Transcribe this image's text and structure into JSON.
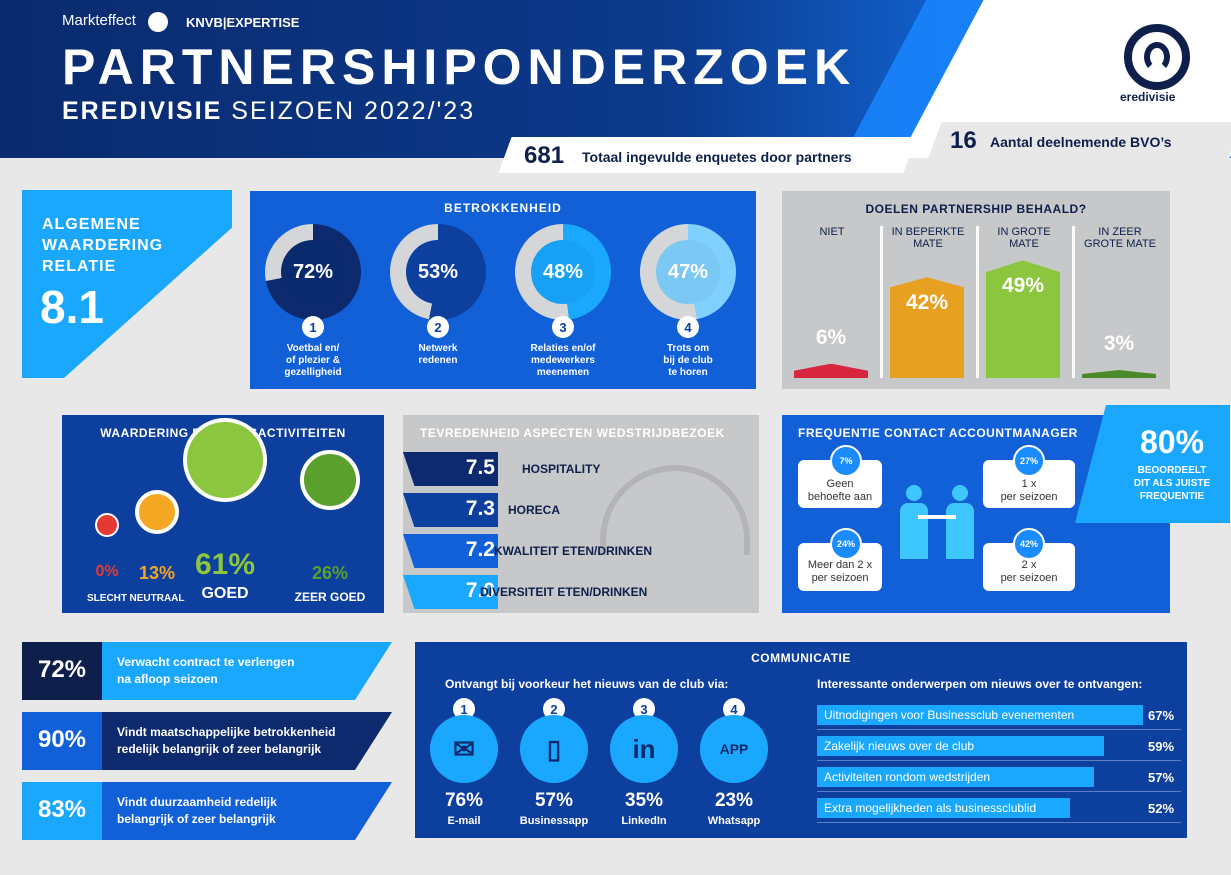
{
  "header": {
    "brand1": "Markteffect",
    "brand2": "KNVB|EXPERTISE",
    "title": "PARTNERSHIPONDERZOEK",
    "subtitle_bold": "EREDIVISIE",
    "subtitle_rest": "SEIZOEN 2022/'23",
    "logo_text": "eredivisie",
    "total_value": "681",
    "total_label": "Totaal ingevulde enquetes door partners",
    "clubs_value": "16",
    "clubs_label": "Aantal deelnemende BVO’s"
  },
  "algemene": {
    "title_line1": "ALGEMENE",
    "title_line2": "WAARDERING",
    "title_line3": "RELATIE",
    "score": "8.1"
  },
  "betrokkenheid": {
    "title": "BETROKKENHEID",
    "items": [
      {
        "pct": "72%",
        "num": "1",
        "line1": "Voetbal en/",
        "line2": "of plezier &",
        "line3": "gezelligheid"
      },
      {
        "pct": "53%",
        "num": "2",
        "line1": "Netwerk",
        "line2": "redenen",
        "line3": ""
      },
      {
        "pct": "48%",
        "num": "3",
        "line1": "Relaties en/of",
        "line2": "medewerkers",
        "line3": "meenemen"
      },
      {
        "pct": "47%",
        "num": "4",
        "line1": "Trots om",
        "line2": "bij de club",
        "line3": "te horen"
      }
    ],
    "values": [
      72,
      53,
      48,
      47
    ]
  },
  "doelen": {
    "title": "DOELEN PARTNERSHIP BEHAALD?",
    "cols": [
      {
        "label1": "NIET",
        "label2": "",
        "pct": "6%",
        "value": 6,
        "color": "#d7263d"
      },
      {
        "label1": "IN BEPERKTE",
        "label2": "MATE",
        "pct": "42%",
        "value": 42,
        "color": "#e8a020"
      },
      {
        "label1": "IN GROTE",
        "label2": "MATE",
        "pct": "49%",
        "value": 49,
        "color": "#8cc63f"
      },
      {
        "label1": "IN ZEER",
        "label2": "GROTE MATE",
        "pct": "3%",
        "value": 3,
        "color": "#4a8a2a"
      }
    ]
  },
  "waardering": {
    "title": "WAARDERING BUSINESSACTIVITEITEN",
    "items": [
      {
        "pct": "0%",
        "label": "SLECHT",
        "color": "#e53935"
      },
      {
        "pct": "13%",
        "label": "NEUTRAAL",
        "color": "#f5a623"
      },
      {
        "pct": "61%",
        "label": "GOED",
        "color": "#8cc63f"
      },
      {
        "pct": "26%",
        "label": "ZEER GOED",
        "color": "#5aa02c"
      }
    ]
  },
  "tevredenheid": {
    "title": "TEVREDENHEID ASPECTEN WEDSTRIJDBEZOEK",
    "rows": [
      {
        "score": "7.5",
        "label": "HOSPITALITY"
      },
      {
        "score": "7.3",
        "label": "HORECA"
      },
      {
        "score": "7.2",
        "label": "KWALITEIT ETEN/DRINKEN"
      },
      {
        "score": "7.0",
        "label": "DIVERSITEIT ETEN/DRINKEN"
      }
    ]
  },
  "frequentie": {
    "title": "FREQUENTIE CONTACT ACCOUNTMANAGER",
    "b1_pct": "7%",
    "b1_l1": "Geen",
    "b1_l2": "behoefte aan",
    "b2_pct": "27%",
    "b2_l1": "1 x",
    "b2_l2": "per seizoen",
    "b3_pct": "24%",
    "b3_l1": "Meer dan 2 x",
    "b3_l2": "per seizoen",
    "b4_pct": "42%",
    "b4_l1": "2 x",
    "b4_l2": "per seizoen",
    "big_pct": "80%",
    "big_l1": "BEOORDEELT",
    "big_l2": "DIT ALS JUISTE",
    "big_l3": "FREQUENTIE"
  },
  "stats": [
    {
      "pct": "72%",
      "line1": "Verwacht contract te verlengen",
      "line2": "na afloop seizoen"
    },
    {
      "pct": "90%",
      "line1": "Vindt maatschappelijke betrokkenheid",
      "line2": "redelijk belangrijk of zeer belangrijk"
    },
    {
      "pct": "83%",
      "line1": "Vindt duurzaamheid redelijk",
      "line2": "belangrijk of zeer belangrijk"
    }
  ],
  "communicatie": {
    "title": "COMMUNICATIE",
    "left_title": "Ontvangt bij voorkeur het nieuws van de club via:",
    "channels": [
      {
        "num": "1",
        "pct": "76%",
        "label": "E-mail",
        "icon": "email-icon"
      },
      {
        "num": "2",
        "pct": "57%",
        "label": "Businessapp",
        "icon": "phone-icon"
      },
      {
        "num": "3",
        "pct": "35%",
        "label": "LinkedIn",
        "icon": "linkedin-icon"
      },
      {
        "num": "4",
        "pct": "23%",
        "label": "Whatsapp",
        "icon": "app-icon"
      }
    ],
    "right_title": "Interessante onderwerpen om nieuws over te ontvangen:",
    "topics": [
      {
        "label": "Uitnodigingen voor Businessclub evenementen",
        "pct": "67%",
        "value": 67
      },
      {
        "label": "Zakelijk nieuws over de club",
        "pct": "59%",
        "value": 59
      },
      {
        "label": "Activiteiten rondom wedstrijden",
        "pct": "57%",
        "value": 57
      },
      {
        "label": "Extra mogelijkheden als businessclublid",
        "pct": "52%",
        "value": 52
      }
    ]
  }
}
